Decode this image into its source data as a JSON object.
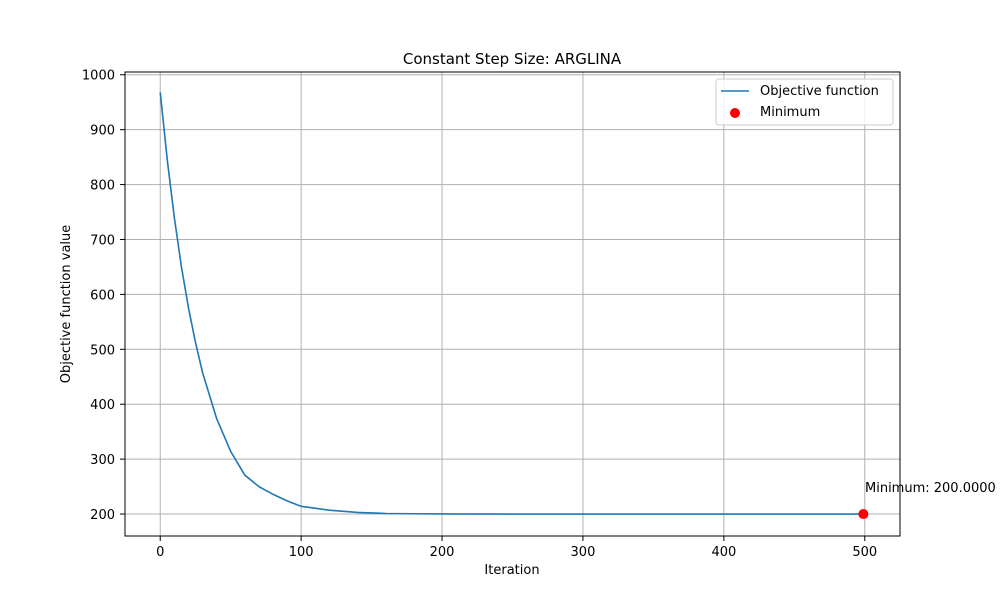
{
  "chart_data": {
    "type": "line",
    "title": "Constant Step Size: ARGLINA",
    "xlabel": "Iteration",
    "ylabel": "Objective function value",
    "xlim": [
      -25,
      525
    ],
    "ylim": [
      160,
      1005
    ],
    "xticks": [
      0,
      100,
      200,
      300,
      400,
      500
    ],
    "yticks": [
      200,
      300,
      400,
      500,
      600,
      700,
      800,
      900,
      1000
    ],
    "xtick_labels": [
      "0",
      "100",
      "200",
      "300",
      "400",
      "500"
    ],
    "ytick_labels": [
      "200",
      "300",
      "400",
      "500",
      "600",
      "700",
      "800",
      "900",
      "1000"
    ],
    "grid": true,
    "legend_position": "top-right",
    "series": [
      {
        "name": "Objective function",
        "color": "#1f77b4",
        "x": [
          0,
          5,
          10,
          15,
          20,
          25,
          30,
          40,
          50,
          60,
          70,
          80,
          90,
          100,
          120,
          140,
          160,
          180,
          200,
          250,
          300,
          350,
          400,
          450,
          499
        ],
        "y": [
          968,
          845,
          740,
          651,
          576,
          513,
          458,
          374,
          314,
          271,
          250,
          236,
          224,
          214,
          207,
          203,
          201,
          200.5,
          200.2,
          200.0,
          200.0,
          200.0,
          200.0,
          200.0,
          200.0
        ]
      }
    ],
    "points": [
      {
        "name": "Minimum",
        "color": "#ff0000",
        "x": 499,
        "y": 200.0
      }
    ],
    "annotations": [
      {
        "text": "Minimum: 200.0000",
        "x": 499,
        "y": 200.0
      }
    ]
  }
}
